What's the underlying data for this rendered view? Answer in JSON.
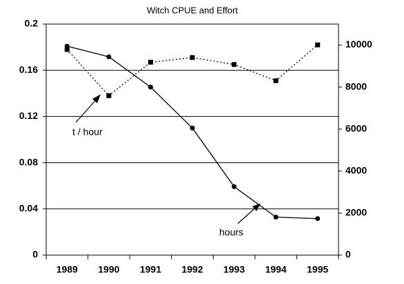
{
  "chart_data": {
    "type": "line",
    "title": "Witch CPUE and Effort",
    "categories": [
      "1989",
      "1990",
      "1991",
      "1992",
      "1993",
      "1994",
      "1995"
    ],
    "series": [
      {
        "name": "t / hour",
        "color": "#000000",
        "marker": "square",
        "dash": "dotted",
        "axis": "y",
        "values": [
          0.178,
          0.138,
          0.167,
          0.171,
          0.165,
          0.151,
          0.182
        ]
      },
      {
        "name": "hours",
        "color": "#000000",
        "marker": "circle",
        "dash": "solid",
        "axis": "y2",
        "values": [
          9950,
          9440,
          8000,
          6050,
          3260,
          1810,
          1740
        ]
      }
    ],
    "ylim": [
      0,
      0.2
    ],
    "yticks": [
      0,
      0.04,
      0.08,
      0.12,
      0.16,
      0.2
    ],
    "y2lim": [
      0,
      11000
    ],
    "y2ticks": [
      0,
      2000,
      4000,
      6000,
      8000,
      10000
    ],
    "grid": true
  }
}
